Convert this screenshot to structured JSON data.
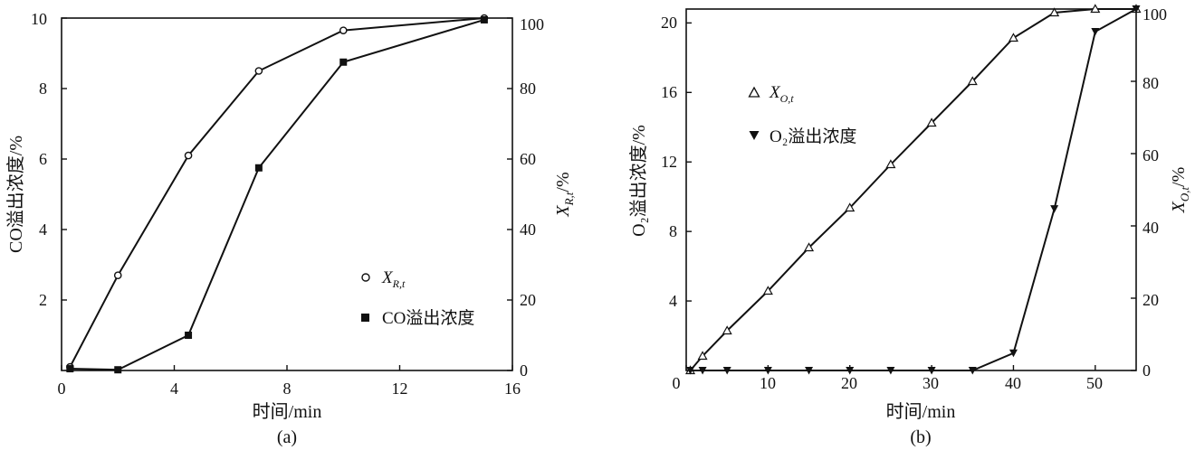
{
  "chart_data": [
    {
      "type": "line",
      "caption": "(a)",
      "xlabel": "时间/min",
      "ylabel_left": "CO溢出浓度/%",
      "ylabel_right_main": "X",
      "ylabel_right_sub": "R,t",
      "ylabel_right_unit": "/%",
      "xlim": [
        0,
        16
      ],
      "ylim_left": [
        0,
        10
      ],
      "ylim_right": [
        0,
        100
      ],
      "x_ticks": [
        "0",
        "4",
        "8",
        "12",
        "16"
      ],
      "y_left_ticks": [
        "2",
        "4",
        "6",
        "8",
        "10"
      ],
      "y_right_ticks": [
        "0",
        "20",
        "40",
        "60",
        "80",
        "100"
      ],
      "series": [
        {
          "name": "X",
          "name_sub": "R,t",
          "marker": "open-circle",
          "axis": "right",
          "x": [
            0.3,
            2,
            4.5,
            7,
            10,
            15
          ],
          "y": [
            1,
            27,
            61,
            85,
            96.5,
            100
          ]
        },
        {
          "name": "CO溢出浓度",
          "marker": "filled-square",
          "axis": "left",
          "x": [
            0.3,
            2,
            4.5,
            7,
            10,
            15
          ],
          "y": [
            0.05,
            0.02,
            1.0,
            5.75,
            8.75,
            9.95
          ]
        }
      ],
      "legend_position": "lower-right"
    },
    {
      "type": "line",
      "caption": "(b)",
      "xlabel": "时间/min",
      "ylabel_left": "O₂溢出浓度/%",
      "ylabel_right_main": "X",
      "ylabel_right_sub": "O,t",
      "ylabel_right_unit": "/%",
      "xlim": [
        0,
        55
      ],
      "ylim_left": [
        0,
        20.8
      ],
      "ylim_right": [
        0,
        100
      ],
      "x_ticks": [
        "0",
        "10",
        "20",
        "30",
        "40",
        "50"
      ],
      "y_left_ticks": [
        "4",
        "8",
        "12",
        "16",
        "20"
      ],
      "y_right_ticks": [
        "0",
        "20",
        "40",
        "60",
        "80",
        "100"
      ],
      "series": [
        {
          "name": "X",
          "name_sub": "O,t",
          "marker": "open-triangle",
          "axis": "right",
          "x": [
            0.5,
            2,
            5,
            10,
            15,
            20,
            25,
            30,
            35,
            40,
            45,
            50,
            55
          ],
          "y": [
            0,
            4,
            11,
            22,
            34,
            45,
            57,
            68.5,
            80,
            92,
            99,
            100,
            100
          ]
        },
        {
          "name": "O₂溢出浓度",
          "marker": "filled-down-triangle",
          "axis": "left",
          "x": [
            0.5,
            2,
            5,
            10,
            15,
            20,
            25,
            30,
            35,
            40,
            45,
            50,
            55
          ],
          "y": [
            0,
            0,
            0,
            0,
            0,
            0,
            0,
            0,
            0,
            1.0,
            9.3,
            19.5,
            20.8
          ]
        }
      ],
      "legend_position": "upper-left"
    }
  ]
}
